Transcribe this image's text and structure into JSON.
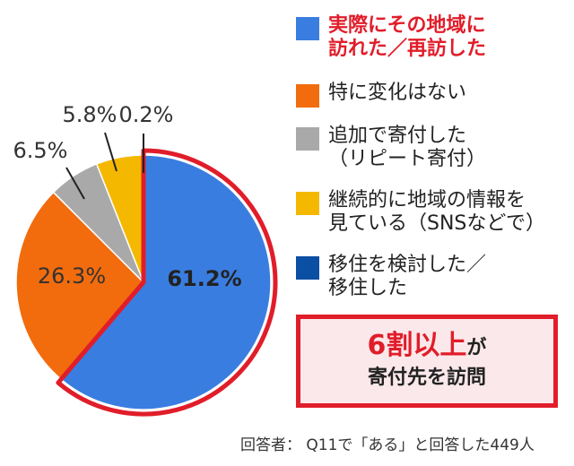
{
  "chart_data": {
    "type": "pie",
    "slices": [
      {
        "label": "実際にその地域に訪れた／再訪した",
        "value": 61.2,
        "display": "61.2%",
        "color": "#3a7de0"
      },
      {
        "label": "特に変化はない",
        "value": 26.3,
        "display": "26.3%",
        "color": "#f26c0d"
      },
      {
        "label": "追加で寄付した（リピート寄付）",
        "value": 6.5,
        "display": "6.5%",
        "color": "#a9a9a9"
      },
      {
        "label": "継続的に地域の情報を見ている（SNSなどで）",
        "value": 5.8,
        "display": "5.8%",
        "color": "#f5b800"
      },
      {
        "label": "移住を検討した／移住した",
        "value": 0.2,
        "display": "0.2%",
        "color": "#0a4fa3"
      }
    ],
    "highlight_color": "#e11d2a"
  },
  "legend": [
    {
      "lines": [
        "実際にその地域に",
        "訪れた／再訪した"
      ],
      "color": "#3a7de0",
      "accent": true
    },
    {
      "lines": [
        "特に変化はない"
      ],
      "color": "#f26c0d",
      "accent": false
    },
    {
      "lines": [
        "追加で寄付した",
        "（リピート寄付）"
      ],
      "color": "#a9a9a9",
      "accent": false
    },
    {
      "lines": [
        "継続的に地域の情報を",
        "見ている（SNSなどで）"
      ],
      "color": "#f5b800",
      "accent": false
    },
    {
      "lines": [
        "移住を検討した／",
        "移住した"
      ],
      "color": "#0a4fa3",
      "accent": false
    }
  ],
  "callout": {
    "main": "6割以上",
    "particle": "が",
    "line2": "寄付先を訪問"
  },
  "footnote": "回答者： Q11で「ある」と回答した449人"
}
